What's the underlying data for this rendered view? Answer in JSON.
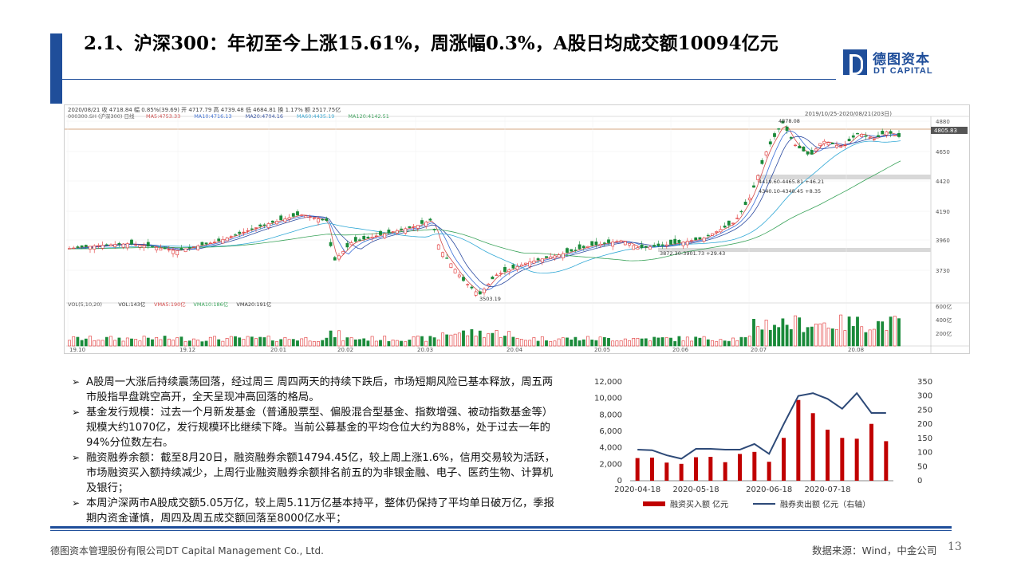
{
  "title": "2.1、沪深300：年初至今上涨15.61%，周涨幅0.3%，A股日均成交额10094亿元",
  "logo": {
    "cn": "德图资本",
    "en": "DT CAPITAL"
  },
  "stock_chart": {
    "header_line1": "2020/08/21 收 4718.84 幅 0.85%(39.69) 开 4717.79 高 4739.48 低 4684.81 换 1.17% 额 2517.75亿",
    "header_line2_items": [
      {
        "text": "000300.SH (沪深300) 日线",
        "color": "#555555"
      },
      {
        "text": "MA5:4753.33",
        "color": "#d24a4a"
      },
      {
        "text": "MA10:4716.13",
        "color": "#3a6fd8"
      },
      {
        "text": "MA20:4704.16",
        "color": "#2b4aa0"
      },
      {
        "text": "MA60:4435.19",
        "color": "#33a9d6"
      },
      {
        "text": "MA120:4142.51",
        "color": "#3aa35a"
      }
    ],
    "range_label": "2019/10/25-2020/08/21(203日)",
    "price_ticks": [
      "4880",
      "4650",
      "4420",
      "4190",
      "3960",
      "3730"
    ],
    "current_price_tag": "4805.83",
    "annotations": [
      "4878.08",
      "3503.19",
      "4419.60-4465.81 +46.21",
      "4340.10-4348.45 +8.35",
      "3872.30-3901.73 +29.43"
    ],
    "volume_header_items": [
      {
        "text": "VOL(5,10,20)",
        "color": "#555555"
      },
      {
        "text": "VOL:143亿",
        "color": "#333333"
      },
      {
        "text": "VMA5:190亿",
        "color": "#d24a4a"
      },
      {
        "text": "VMA10:186亿",
        "color": "#3aa35a"
      },
      {
        "text": "VMA20:191亿",
        "color": "#333333"
      }
    ],
    "volume_ticks": [
      "600亿",
      "400亿",
      "200亿"
    ],
    "date_ticks": [
      "19.10",
      "19.12",
      "20.01",
      "20.02",
      "20.03",
      "20.04",
      "20.05",
      "20.06",
      "20.07",
      "20.08"
    ]
  },
  "bullets": [
    "A股周一大涨后持续震荡回落，经过周三 周四两天的持续下跌后，市场短期风险已基本释放，周五两市股指早盘跳空高开，全天呈现冲高回落的格局。",
    "基金发行规模：过去一个月新发基金（普通股票型、偏股混合型基金、指数增强、被动指数基金等）规模大约1070亿，发行规模环比继续下降。当前公募基金的平均仓位大约为88%，处于过去一年的94%分位数左右。",
    "融资融券余额：截至8月20日，融资融券余额14794.45亿，较上周上涨1.6%，信用交易较为活跃，市场融资买入额持续减少，上周行业融资融券余额排名前五的为非银金融、电子、医药生物、计算机及银行；",
    "本周沪深两市A股成交额5.05万亿，较上周5.11万亿基本持平，整体仍保持了平均单日破万亿，季报期内资金谨慎，周四及周五成交额回落至8000亿水平；"
  ],
  "chart_data": {
    "type": "bar",
    "x": [
      "2020-04-17",
      "2020-04-24",
      "2020-05-01",
      "2020-05-08",
      "2020-05-15",
      "2020-05-22",
      "2020-05-29",
      "2020-06-05",
      "2020-06-12",
      "2020-06-19",
      "2020-06-26",
      "2020-07-03",
      "2020-07-10",
      "2020-07-17",
      "2020-07-24",
      "2020-07-31",
      "2020-08-07",
      "2020-08-14"
    ],
    "x_tick_labels": [
      "2020-04-18",
      "2020-05-18",
      "2020-06-18",
      "2020-07-18"
    ],
    "series": [
      {
        "name": "融资买入额 亿元",
        "type": "bar",
        "axis": "left",
        "color": "#c00000",
        "values": [
          2750,
          2800,
          2200,
          2050,
          2850,
          2900,
          2250,
          3250,
          3500,
          2300,
          5200,
          9800,
          8200,
          6200,
          5200,
          5100,
          6900,
          4800
        ]
      },
      {
        "name": "融券卖出额 亿元（右轴）",
        "type": "line",
        "axis": "right",
        "color": "#2e4a78",
        "values": [
          110,
          108,
          90,
          78,
          113,
          113,
          110,
          110,
          130,
          95,
          200,
          300,
          310,
          290,
          255,
          310,
          240,
          240
        ]
      }
    ],
    "ylim_left": [
      0,
      12000
    ],
    "yticks_left": [
      "0",
      "2,000",
      "4,000",
      "6,000",
      "8,000",
      "10,000",
      "12,000"
    ],
    "ylim_right": [
      0,
      350
    ],
    "yticks_right": [
      "0",
      "50",
      "100",
      "150",
      "200",
      "250",
      "300",
      "350"
    ],
    "legend_position": "bottom"
  },
  "footer": {
    "company": "德图资本管理股份有限公司DT Capital Management Co., Ltd.",
    "source": "数据来源：Wind，中金公司",
    "page": "13"
  }
}
